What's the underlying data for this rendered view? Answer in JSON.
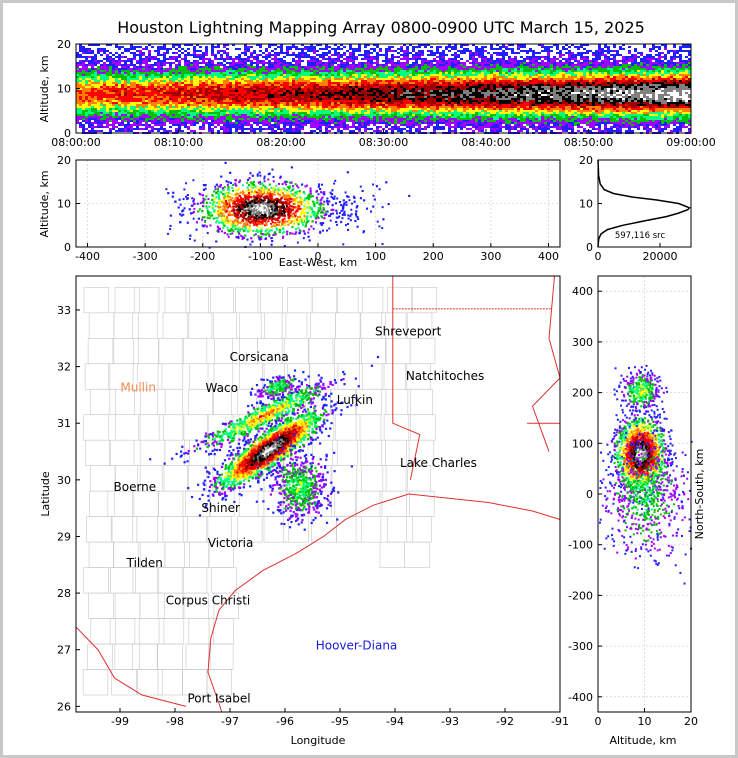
{
  "chart_data": [
    {
      "type": "heatmap",
      "panel": "time-altitude",
      "title": "Houston Lightning Mapping Array 0800-0900 UTC March 15, 2025",
      "ylabel": "Altitude, km",
      "xlabel": "",
      "x_ticks": [
        "08:00:00",
        "08:10:00",
        "08:20:00",
        "08:30:00",
        "08:40:00",
        "08:50:00",
        "09:00:00"
      ],
      "y_ticks": [
        0,
        10,
        20
      ],
      "xlim": [
        "08:00:00",
        "09:00:00"
      ],
      "ylim": [
        0,
        20
      ],
      "band_center_km": 9,
      "band_halfwidth_km": 6
    },
    {
      "type": "heatmap",
      "panel": "east-west-altitude",
      "xlabel": "East-West, km",
      "ylabel": "Altitude, km",
      "x_ticks": [
        -400,
        -300,
        -200,
        -100,
        0,
        100,
        200,
        300,
        400
      ],
      "y_ticks": [
        0,
        10,
        20
      ],
      "xlim": [
        -420,
        420
      ],
      "ylim": [
        0,
        20
      ],
      "core_x_km": -100,
      "core_alt_km": 9
    },
    {
      "type": "line",
      "panel": "altitude-histogram",
      "x_ticks": [
        0,
        20000
      ],
      "y_ticks": [
        0,
        10,
        20
      ],
      "xlim": [
        0,
        30000
      ],
      "ylim": [
        0,
        20
      ],
      "annotation": "597,116 src",
      "x": [
        0,
        100,
        300,
        1000,
        3000,
        8000,
        15000,
        22000,
        26000,
        29000,
        29500,
        26000,
        19000,
        11000,
        5000,
        2000,
        700,
        200,
        0
      ],
      "y": [
        0,
        1,
        2,
        3,
        4,
        5,
        6,
        7,
        7.8,
        8.6,
        9,
        10,
        10.8,
        11.5,
        12.3,
        13.2,
        14.5,
        16.5,
        20
      ]
    },
    {
      "type": "heatmap",
      "panel": "plan-view-map",
      "xlabel": "Longitude",
      "ylabel": "Latitude",
      "x_ticks": [
        -99,
        -98,
        -97,
        -96,
        -95,
        -94,
        -93,
        -92,
        -91
      ],
      "y_ticks": [
        26,
        27,
        28,
        29,
        30,
        31,
        32,
        33
      ],
      "xlim": [
        -99.8,
        -91
      ],
      "ylim": [
        25.9,
        33.6
      ],
      "cities": [
        {
          "name": "Corsicana",
          "lon": -96.47,
          "lat": 32.1,
          "color": "#000000"
        },
        {
          "name": "Shreveport",
          "lon": -93.76,
          "lat": 32.55,
          "color": "#000000"
        },
        {
          "name": "Mullin",
          "lon": -98.67,
          "lat": 31.56,
          "color": "#f08c50"
        },
        {
          "name": "Waco",
          "lon": -97.15,
          "lat": 31.55,
          "color": "#000000"
        },
        {
          "name": "Natchitoches",
          "lon": -93.09,
          "lat": 31.76,
          "color": "#000000"
        },
        {
          "name": "Lufkin",
          "lon": -94.73,
          "lat": 31.34,
          "color": "#000000"
        },
        {
          "name": "Lake Charles",
          "lon": -93.21,
          "lat": 30.23,
          "color": "#000000"
        },
        {
          "name": "Boerne",
          "lon": -98.73,
          "lat": 29.8,
          "color": "#000000"
        },
        {
          "name": "Shiner",
          "lon": -97.17,
          "lat": 29.43,
          "color": "#000000"
        },
        {
          "name": "Victoria",
          "lon": -96.99,
          "lat": 28.81,
          "color": "#000000"
        },
        {
          "name": "Tilden",
          "lon": -98.55,
          "lat": 28.46,
          "color": "#000000"
        },
        {
          "name": "Corpus Christi",
          "lon": -97.4,
          "lat": 27.8,
          "color": "#000000"
        },
        {
          "name": "Hoover-Diana",
          "lon": -94.7,
          "lat": 27.0,
          "color": "#1a1ad6"
        },
        {
          "name": "Port Isabel",
          "lon": -97.2,
          "lat": 26.07,
          "color": "#000000"
        }
      ]
    },
    {
      "type": "heatmap",
      "panel": "altitude-north-south",
      "xlabel": "Altitude, km",
      "ylabel": "North-South, km",
      "x_ticks": [
        0,
        10,
        20
      ],
      "y_ticks": [
        -400,
        -300,
        -200,
        -100,
        0,
        100,
        200,
        300,
        400
      ],
      "xlim": [
        0,
        20
      ],
      "ylim": [
        -430,
        430
      ]
    }
  ],
  "colormap": [
    "#ffffff",
    "#2020ff",
    "#a000ff",
    "#00c000",
    "#00ff80",
    "#ffff00",
    "#ff8000",
    "#ff0000",
    "#a00000",
    "#000000",
    "#808080",
    "#ffffff"
  ]
}
